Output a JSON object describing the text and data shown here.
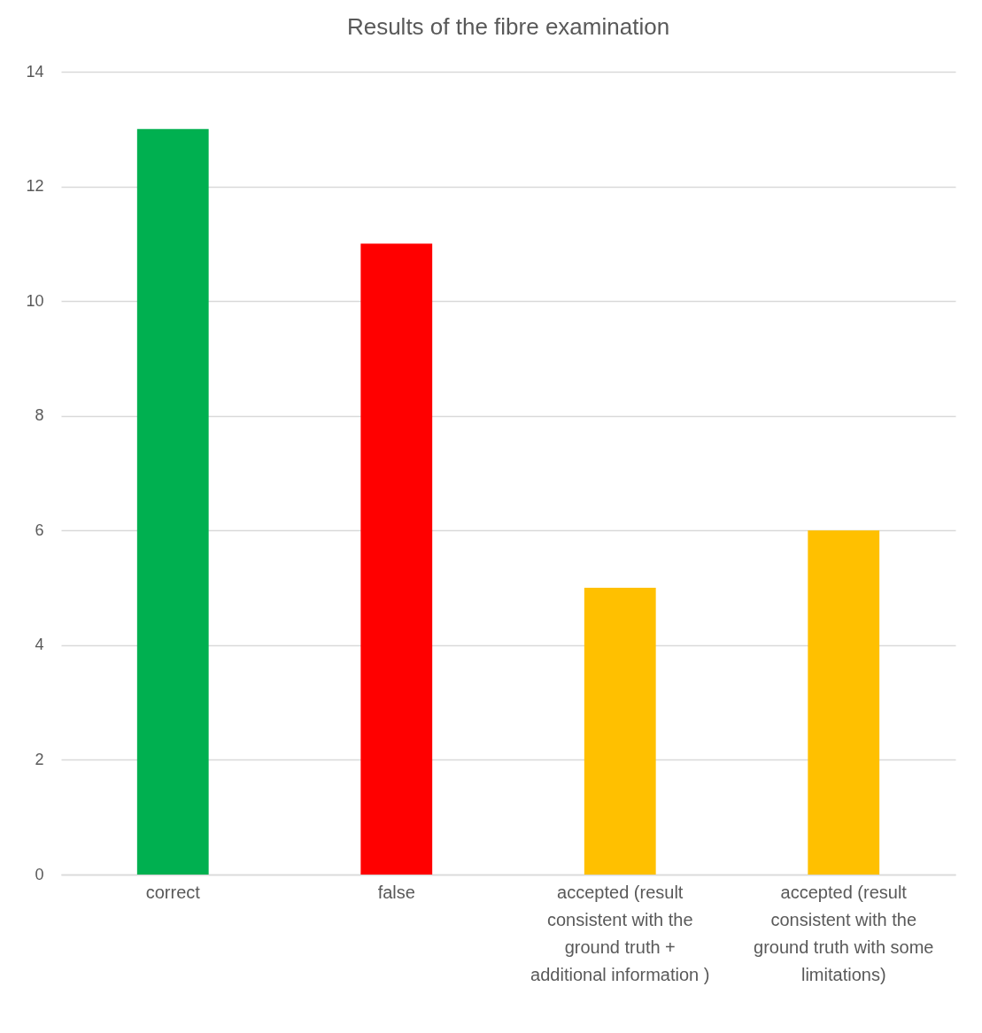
{
  "chart_data": {
    "type": "bar",
    "title": "Results of the fibre examination",
    "categories": [
      "correct",
      "false",
      "accepted (result consistent with the ground truth + additional information )",
      "accepted (result consistent with the ground truth with some limitations)"
    ],
    "values": [
      13,
      11,
      5,
      6
    ],
    "colors": [
      "#00b050",
      "#ff0000",
      "#ffc000",
      "#ffc000"
    ],
    "ylim": [
      0,
      14
    ],
    "yticks": [
      0,
      2,
      4,
      6,
      8,
      10,
      12,
      14
    ],
    "grid": "y",
    "legend": false
  }
}
